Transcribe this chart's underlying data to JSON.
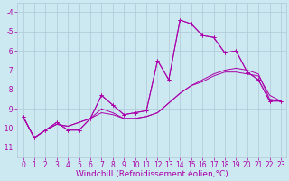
{
  "background_color": "#cce8f0",
  "grid_color": "#b0c8d8",
  "line_color": "#aa00aa",
  "xlabel": "Windchill (Refroidissement éolien,°C)",
  "xlabel_fontsize": 6.5,
  "tick_fontsize": 5.5,
  "xlim": [
    -0.5,
    23.5
  ],
  "ylim": [
    -11.5,
    -3.5
  ],
  "yticks": [
    -11,
    -10,
    -9,
    -8,
    -7,
    -6,
    -5,
    -4
  ],
  "xticks": [
    0,
    1,
    2,
    3,
    4,
    5,
    6,
    7,
    8,
    9,
    10,
    11,
    12,
    13,
    14,
    15,
    16,
    17,
    18,
    19,
    20,
    21,
    22,
    23
  ],
  "curve1_x": [
    0,
    1,
    2,
    3,
    4,
    5,
    6,
    7,
    8,
    9,
    10,
    11,
    12,
    13,
    14,
    15,
    16,
    17,
    18,
    19,
    20,
    21,
    22,
    23
  ],
  "curve1_y": [
    -9.4,
    -10.5,
    -10.1,
    -9.7,
    -10.1,
    -10.1,
    -9.5,
    -8.3,
    -8.8,
    -9.3,
    -9.2,
    -9.1,
    -6.5,
    -7.5,
    -4.4,
    -4.6,
    -5.2,
    -5.3,
    -6.1,
    -6.0,
    -7.1,
    -7.5,
    -8.6,
    -8.6
  ],
  "curve2_x": [
    0,
    1,
    2,
    3,
    4,
    5,
    6,
    7,
    8,
    9,
    10,
    11,
    12,
    13,
    14,
    15,
    16,
    17,
    18,
    19,
    20,
    21,
    22,
    23
  ],
  "curve2_y": [
    -9.4,
    -10.5,
    -10.1,
    -9.7,
    -10.1,
    -10.1,
    -9.5,
    -8.3,
    -8.8,
    -9.3,
    -9.2,
    -9.1,
    -6.5,
    -7.5,
    -4.4,
    -4.6,
    -5.2,
    -5.3,
    -6.1,
    -6.0,
    -7.1,
    -7.5,
    -8.6,
    -8.6
  ],
  "curve3_x": [
    0,
    1,
    2,
    3,
    4,
    5,
    6,
    7,
    8,
    9,
    10,
    11,
    12,
    13,
    14,
    15,
    16,
    17,
    18,
    19,
    20,
    21,
    22,
    23
  ],
  "curve3_y": [
    -9.4,
    -10.5,
    -10.1,
    -9.8,
    -9.9,
    -9.7,
    -9.5,
    -9.2,
    -9.3,
    -9.5,
    -9.5,
    -9.4,
    -9.2,
    -8.7,
    -8.2,
    -7.8,
    -7.6,
    -7.3,
    -7.1,
    -7.1,
    -7.2,
    -7.3,
    -8.3,
    -8.6
  ],
  "curve4_x": [
    0,
    1,
    2,
    3,
    4,
    5,
    6,
    7,
    8,
    9,
    10,
    11,
    12,
    13,
    14,
    15,
    16,
    17,
    18,
    19,
    20,
    21,
    22,
    23
  ],
  "curve4_y": [
    -9.4,
    -10.5,
    -10.1,
    -9.8,
    -9.9,
    -9.7,
    -9.5,
    -9.0,
    -9.2,
    -9.5,
    -9.5,
    -9.4,
    -9.2,
    -8.7,
    -8.2,
    -7.8,
    -7.5,
    -7.2,
    -7.0,
    -6.9,
    -7.0,
    -7.2,
    -8.5,
    -8.6
  ]
}
